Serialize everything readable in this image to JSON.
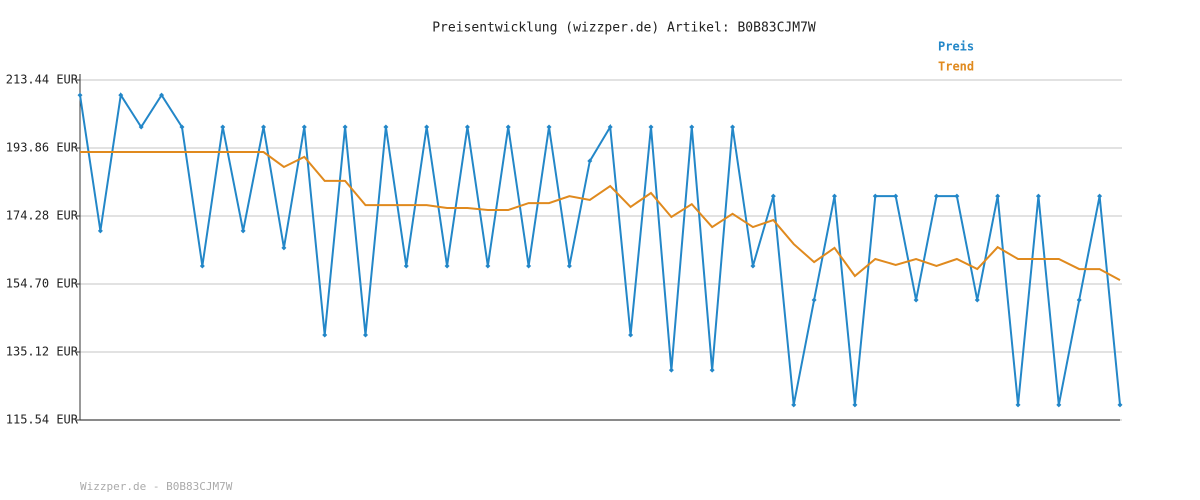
{
  "chart_data": {
    "type": "line",
    "title": "Preisentwicklung (wizzper.de) Artikel: B0B83CJM7W",
    "footer": "Wizzper.de - B0B83CJM7W",
    "ylim": [
      115.54,
      213.44
    ],
    "yticks": [
      {
        "value": 115.54,
        "label": "115.54 EUR"
      },
      {
        "value": 135.12,
        "label": "135.12 EUR"
      },
      {
        "value": 154.7,
        "label": "154.70 EUR"
      },
      {
        "value": 174.28,
        "label": "174.28 EUR"
      },
      {
        "value": 193.86,
        "label": "193.86 EUR"
      },
      {
        "value": 213.44,
        "label": "213.44 EUR"
      }
    ],
    "grid": true,
    "legend": "top-right",
    "series": [
      {
        "name": "Preis",
        "color": "#2387c8",
        "markers": true,
        "values": [
          209.1,
          170.0,
          209.1,
          199.9,
          209.1,
          199.9,
          159.9,
          199.9,
          170.0,
          199.9,
          165.1,
          199.9,
          140.0,
          199.9,
          140.0,
          199.9,
          159.9,
          199.9,
          159.9,
          199.9,
          159.9,
          199.9,
          159.9,
          199.9,
          159.9,
          190.1,
          199.9,
          140.0,
          199.9,
          129.9,
          199.9,
          129.9,
          199.9,
          159.9,
          180.0,
          119.9,
          150.1,
          180.0,
          119.9,
          180.0,
          180.0,
          150.1,
          180.0,
          180.0,
          150.1,
          180.0,
          119.9,
          180.0,
          119.9,
          150.1,
          180.0,
          119.9
        ]
      },
      {
        "name": "Trend",
        "color": "#e08a1e",
        "markers": false,
        "values": [
          192.7,
          192.7,
          192.7,
          192.7,
          192.7,
          192.7,
          192.7,
          192.7,
          192.7,
          192.7,
          188.4,
          191.3,
          184.4,
          184.4,
          177.4,
          177.4,
          177.4,
          177.4,
          176.6,
          176.6,
          176.0,
          176.0,
          178.0,
          178.0,
          180.0,
          178.9,
          182.9,
          176.9,
          180.9,
          174.0,
          177.7,
          171.1,
          174.9,
          171.1,
          173.1,
          166.2,
          161.0,
          165.1,
          157.0,
          161.9,
          160.2,
          161.9,
          159.9,
          161.9,
          159.0,
          165.3,
          161.9,
          161.9,
          161.9,
          159.0,
          159.0,
          155.8
        ]
      }
    ]
  }
}
